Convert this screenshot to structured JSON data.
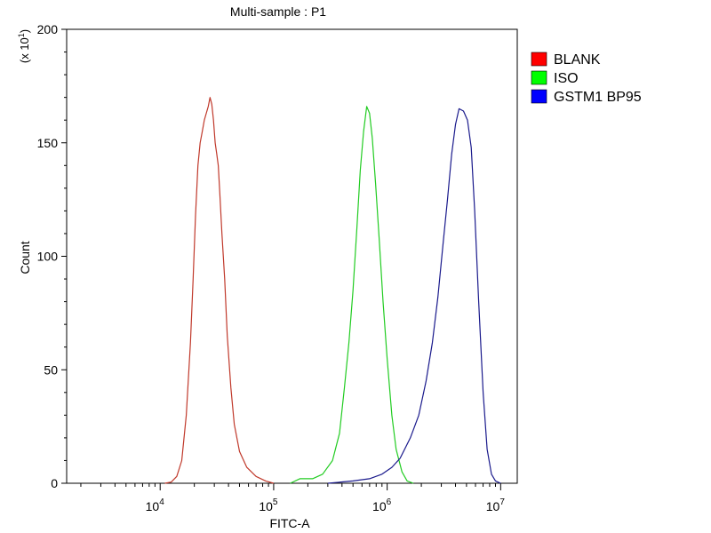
{
  "chart_data": {
    "type": "line",
    "title": "Multi-sample : P1",
    "xlabel": "FITC-A",
    "ylabel": "Count",
    "y_multiplier_label": "(x 10",
    "y_multiplier_exp": "1",
    "y_multiplier_close": ")",
    "x_scale": "log",
    "xlim": [
      1500,
      14000000
    ],
    "ylim": [
      0,
      200
    ],
    "y_ticks": [
      "0",
      "50",
      "100",
      "150",
      "200"
    ],
    "x_tick_labels": [
      {
        "base": "10",
        "exp": "4",
        "value": 10000
      },
      {
        "base": "10",
        "exp": "5",
        "value": 100000
      },
      {
        "base": "10",
        "exp": "6",
        "value": 1000000
      },
      {
        "base": "10",
        "exp": "7",
        "value": 10000000
      }
    ],
    "grid": false,
    "legend_position": "right",
    "series": [
      {
        "name": "BLANK",
        "color": "#c0392b",
        "legend_color": "#ff0000",
        "points": [
          [
            11000,
            0
          ],
          [
            12500,
            0.5
          ],
          [
            14000,
            3
          ],
          [
            15500,
            10
          ],
          [
            17000,
            30
          ],
          [
            18500,
            62
          ],
          [
            19500,
            90
          ],
          [
            20500,
            118
          ],
          [
            21500,
            140
          ],
          [
            22500,
            150
          ],
          [
            23500,
            155
          ],
          [
            24500,
            160
          ],
          [
            25500,
            163
          ],
          [
            26500,
            166
          ],
          [
            27500,
            170
          ],
          [
            28500,
            167
          ],
          [
            29500,
            160
          ],
          [
            30500,
            150
          ],
          [
            31500,
            145
          ],
          [
            32500,
            140
          ],
          [
            33500,
            128
          ],
          [
            35000,
            110
          ],
          [
            37000,
            90
          ],
          [
            39000,
            65
          ],
          [
            42000,
            42
          ],
          [
            45000,
            26
          ],
          [
            50000,
            14
          ],
          [
            58000,
            7
          ],
          [
            70000,
            3
          ],
          [
            85000,
            1
          ],
          [
            100000,
            0
          ]
        ]
      },
      {
        "name": "ISO",
        "color": "#22cc22",
        "legend_color": "#00ff00",
        "points": [
          [
            140000,
            0
          ],
          [
            170000,
            2
          ],
          [
            220000,
            2
          ],
          [
            270000,
            4
          ],
          [
            330000,
            10
          ],
          [
            380000,
            22
          ],
          [
            420000,
            42
          ],
          [
            460000,
            62
          ],
          [
            500000,
            85
          ],
          [
            540000,
            112
          ],
          [
            580000,
            138
          ],
          [
            620000,
            155
          ],
          [
            660000,
            166
          ],
          [
            700000,
            163
          ],
          [
            740000,
            152
          ],
          [
            790000,
            132
          ],
          [
            850000,
            108
          ],
          [
            920000,
            80
          ],
          [
            1000000,
            55
          ],
          [
            1100000,
            30
          ],
          [
            1200000,
            15
          ],
          [
            1350000,
            5
          ],
          [
            1500000,
            1
          ],
          [
            1700000,
            0
          ]
        ]
      },
      {
        "name": "GSTM1 BP95",
        "color": "#1a1a8c",
        "legend_color": "#0000ff",
        "points": [
          [
            300000,
            0
          ],
          [
            500000,
            1
          ],
          [
            700000,
            2
          ],
          [
            900000,
            4
          ],
          [
            1100000,
            7
          ],
          [
            1300000,
            11
          ],
          [
            1600000,
            20
          ],
          [
            1900000,
            30
          ],
          [
            2200000,
            45
          ],
          [
            2500000,
            62
          ],
          [
            2800000,
            82
          ],
          [
            3100000,
            105
          ],
          [
            3400000,
            125
          ],
          [
            3700000,
            145
          ],
          [
            4000000,
            158
          ],
          [
            4300000,
            165
          ],
          [
            4700000,
            164
          ],
          [
            5100000,
            160
          ],
          [
            5500000,
            148
          ],
          [
            5900000,
            120
          ],
          [
            6400000,
            80
          ],
          [
            7000000,
            40
          ],
          [
            7600000,
            15
          ],
          [
            8300000,
            4
          ],
          [
            9000000,
            1
          ],
          [
            10000000,
            0
          ]
        ]
      }
    ]
  }
}
